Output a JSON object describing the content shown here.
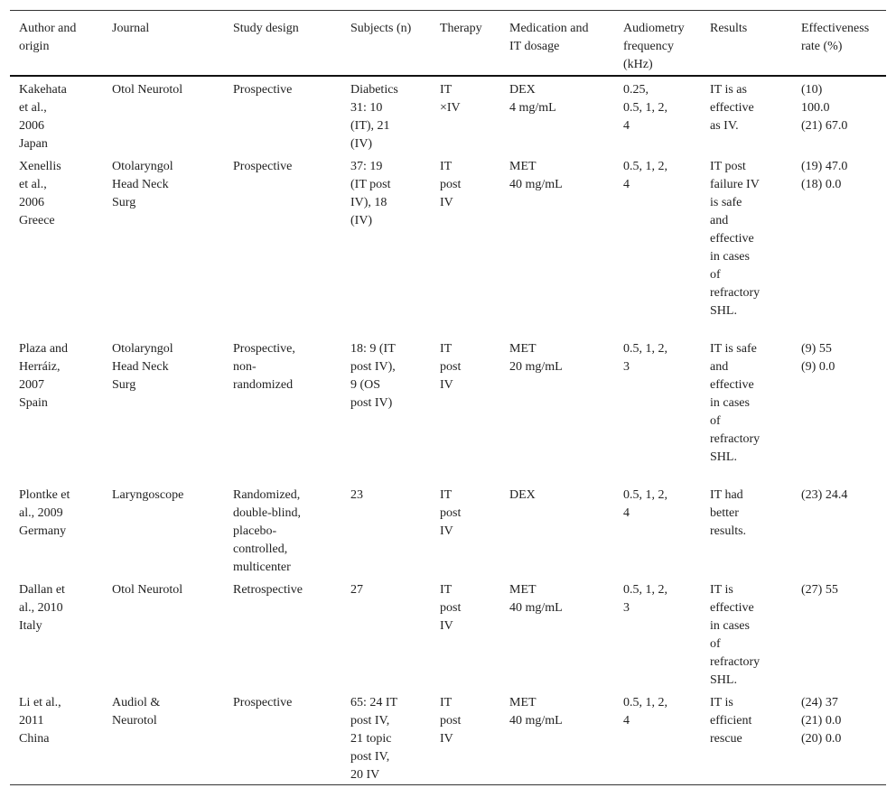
{
  "table": {
    "header": [
      [
        "Author and",
        "origin"
      ],
      [
        "Journal"
      ],
      [
        "Study design"
      ],
      [
        "Subjects (n)"
      ],
      [
        "Therapy"
      ],
      [
        "Medication and",
        "IT dosage"
      ],
      [
        "Audiometry",
        "frequency",
        "(kHz)"
      ],
      [
        "Results"
      ],
      [
        "Effectiveness",
        "rate (%)"
      ]
    ],
    "rows": [
      [
        [
          "Kakehata",
          "et al.,",
          "2006",
          "Japan"
        ],
        [
          "Otol Neurotol"
        ],
        [
          "Prospective"
        ],
        [
          "Diabetics",
          "31: 10",
          "(IT), 21",
          "(IV)"
        ],
        [
          "IT",
          "×IV"
        ],
        [
          "DEX",
          "4 mg/mL"
        ],
        [
          "0.25,",
          "0.5, 1, 2,",
          "4"
        ],
        [
          "IT is as",
          "effective",
          "as IV."
        ],
        [
          "(10)",
          "100.0",
          "(21) 67.0"
        ]
      ],
      [
        [
          "Xenellis",
          "et al.,",
          "2006",
          "Greece"
        ],
        [
          "Otolaryngol",
          "Head Neck",
          "Surg"
        ],
        [
          "Prospective"
        ],
        [
          "37: 19",
          "(IT post",
          "IV), 18",
          "(IV)"
        ],
        [
          "IT",
          "post",
          "IV"
        ],
        [
          "MET",
          "40 mg/mL"
        ],
        [
          "0.5, 1, 2,",
          "4"
        ],
        [
          "IT post",
          "failure IV",
          "is safe",
          "and",
          "effective",
          "in cases",
          "of",
          "refractory",
          "SHL."
        ],
        [
          "(19) 47.0",
          "(18) 0.0"
        ]
      ],
      [
        [
          "Plaza and",
          "Herráiz,",
          "2007",
          "Spain"
        ],
        [
          "Otolaryngol",
          "Head Neck",
          "Surg"
        ],
        [
          "Prospective,",
          "non-",
          "randomized"
        ],
        [
          "18: 9 (IT",
          "post IV),",
          "9 (OS",
          "post IV)"
        ],
        [
          "IT",
          "post",
          "IV"
        ],
        [
          "MET",
          "20 mg/mL"
        ],
        [
          "0.5, 1, 2,",
          "3"
        ],
        [
          "IT is safe",
          "and",
          "effective",
          "in cases",
          "of",
          "refractory",
          "SHL."
        ],
        [
          "(9) 55",
          "(9) 0.0"
        ]
      ],
      [
        [
          "Plontke et",
          "al., 2009",
          "Germany"
        ],
        [
          "Laryngoscope"
        ],
        [
          "Randomized,",
          "double-blind,",
          "placebo-",
          "controlled,",
          "multicenter"
        ],
        [
          "23"
        ],
        [
          "IT",
          "post",
          "IV"
        ],
        [
          "DEX"
        ],
        [
          "0.5, 1, 2,",
          "4"
        ],
        [
          "IT had",
          "better",
          "results."
        ],
        [
          "(23) 24.4"
        ]
      ],
      [
        [
          "Dallan et",
          "al., 2010",
          "Italy"
        ],
        [
          "Otol Neurotol"
        ],
        [
          "Retrospective"
        ],
        [
          "27"
        ],
        [
          "IT",
          "post",
          "IV"
        ],
        [
          "MET",
          "40 mg/mL"
        ],
        [
          "0.5, 1, 2,",
          "3"
        ],
        [
          "IT is",
          "effective",
          "in cases",
          "of",
          "refractory",
          "SHL."
        ],
        [
          "(27) 55"
        ]
      ],
      [
        [
          "Li et al.,",
          "2011",
          "China"
        ],
        [
          "Audiol &",
          "Neurotol"
        ],
        [
          "Prospective"
        ],
        [
          "65: 24 IT",
          "post IV,",
          "21 topic",
          "post IV,",
          "20 IV"
        ],
        [
          "IT",
          "post",
          "IV"
        ],
        [
          "MET",
          "40 mg/mL"
        ],
        [
          "0.5, 1, 2,",
          "4"
        ],
        [
          "IT is",
          "efficient",
          "rescue"
        ],
        [
          "(24) 37",
          "(21) 0.0",
          "(20) 0.0"
        ]
      ]
    ]
  }
}
